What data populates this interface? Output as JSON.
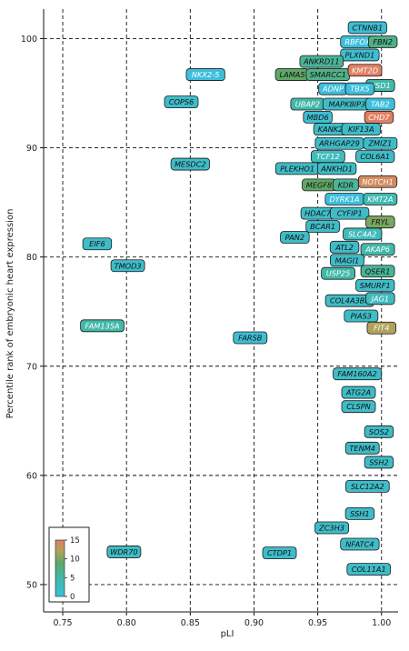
{
  "chart_data": {
    "type": "scatter",
    "title": "",
    "xlabel": "pLI",
    "ylabel": "Percentile rank of embryonic heart expression",
    "xlim": [
      0.735,
      1.013
    ],
    "ylim": [
      47.5,
      102.7
    ],
    "xticks": [
      0.75,
      0.8,
      0.85,
      0.9,
      0.95,
      1.0
    ],
    "xtick_labels": [
      "0.75",
      "0.80",
      "0.85",
      "0.90",
      "0.95",
      "1.00"
    ],
    "yticks": [
      50,
      60,
      70,
      80,
      90,
      100
    ],
    "ytick_labels": [
      "50",
      "60",
      "70",
      "80",
      "90",
      "100"
    ],
    "grid": "dashed",
    "colorbar": {
      "position": "bottom-left",
      "min": 0,
      "max": 15,
      "ticks": [
        "0",
        "5",
        "10",
        "15"
      ],
      "colors": [
        "#3dbfdc",
        "#42b8a8",
        "#5ea865",
        "#b0a25a",
        "#e27f63"
      ]
    },
    "points": [
      {
        "label": "CTNNB1",
        "x": 0.989,
        "y": 101.0,
        "c": 1
      },
      {
        "label": "RBFOX2",
        "x": 0.983,
        "y": 99.7,
        "c": 0
      },
      {
        "label": "FBN2",
        "x": 1.001,
        "y": 99.7,
        "c": 7
      },
      {
        "label": "PLXND1",
        "x": 0.983,
        "y": 98.5,
        "c": 1
      },
      {
        "label": "ANKRD11",
        "x": 0.953,
        "y": 97.9,
        "c": 6
      },
      {
        "label": "NKX2-5",
        "x": 0.862,
        "y": 96.7,
        "c": 0
      },
      {
        "label": "LAMA5",
        "x": 0.93,
        "y": 96.7,
        "c": 9
      },
      {
        "label": "SMARCC1",
        "x": 0.958,
        "y": 96.7,
        "c": 7
      },
      {
        "label": "KMT2D",
        "x": 0.987,
        "y": 97.1,
        "c": 15
      },
      {
        "label": "NSD1",
        "x": 0.999,
        "y": 95.7,
        "c": 5
      },
      {
        "label": "ADNP",
        "x": 0.962,
        "y": 95.4,
        "c": 0
      },
      {
        "label": "TBX5",
        "x": 0.983,
        "y": 95.4,
        "c": 0
      },
      {
        "label": "COPS6",
        "x": 0.843,
        "y": 94.2,
        "c": 2
      },
      {
        "label": "UBAP2",
        "x": 0.942,
        "y": 94.0,
        "c": 5
      },
      {
        "label": "MAPK8IP3",
        "x": 0.973,
        "y": 94.0,
        "c": 2
      },
      {
        "label": "TAB2",
        "x": 0.999,
        "y": 94.0,
        "c": 0
      },
      {
        "label": "MBD6",
        "x": 0.95,
        "y": 92.8,
        "c": 1
      },
      {
        "label": "CHD7",
        "x": 0.998,
        "y": 92.8,
        "c": 15
      },
      {
        "label": "KANK2",
        "x": 0.96,
        "y": 91.7,
        "c": 2
      },
      {
        "label": "KIF13A",
        "x": 0.984,
        "y": 91.7,
        "c": 2
      },
      {
        "label": "ARHGAP29",
        "x": 0.967,
        "y": 90.4,
        "c": 2
      },
      {
        "label": "ZMIZ1",
        "x": 0.999,
        "y": 90.4,
        "c": 2
      },
      {
        "label": "MESDC2",
        "x": 0.85,
        "y": 88.5,
        "c": 2
      },
      {
        "label": "TCF12",
        "x": 0.958,
        "y": 89.2,
        "c": 3
      },
      {
        "label": "COL6A1",
        "x": 0.995,
        "y": 89.2,
        "c": 2
      },
      {
        "label": "PLEKHO1",
        "x": 0.934,
        "y": 88.1,
        "c": 2
      },
      {
        "label": "ANKHD1",
        "x": 0.965,
        "y": 88.1,
        "c": 2
      },
      {
        "label": "NOTCH1",
        "x": 0.997,
        "y": 86.9,
        "c": 14
      },
      {
        "label": "MEGF8",
        "x": 0.951,
        "y": 86.6,
        "c": 9
      },
      {
        "label": "KDR",
        "x": 0.972,
        "y": 86.6,
        "c": 6
      },
      {
        "label": "DYRK1A",
        "x": 0.971,
        "y": 85.3,
        "c": 0
      },
      {
        "label": "KMT2A",
        "x": 0.999,
        "y": 85.3,
        "c": 4
      },
      {
        "label": "HDAC7",
        "x": 0.95,
        "y": 84.0,
        "c": 2
      },
      {
        "label": "CYFIP1",
        "x": 0.975,
        "y": 84.0,
        "c": 2
      },
      {
        "label": "FRYL",
        "x": 0.999,
        "y": 83.2,
        "c": 10
      },
      {
        "label": "BCAR1",
        "x": 0.954,
        "y": 82.8,
        "c": 2
      },
      {
        "label": "SLC4A2",
        "x": 0.985,
        "y": 82.1,
        "c": 3
      },
      {
        "label": "PAN2",
        "x": 0.932,
        "y": 81.8,
        "c": 2
      },
      {
        "label": "EIF6",
        "x": 0.777,
        "y": 81.2,
        "c": 2
      },
      {
        "label": "ATL2",
        "x": 0.971,
        "y": 80.9,
        "c": 2
      },
      {
        "label": "AKAP6",
        "x": 0.997,
        "y": 80.7,
        "c": 5
      },
      {
        "label": "MAGI1",
        "x": 0.973,
        "y": 79.7,
        "c": 2
      },
      {
        "label": "TMOD3",
        "x": 0.801,
        "y": 79.2,
        "c": 2
      },
      {
        "label": "USP25",
        "x": 0.966,
        "y": 78.5,
        "c": 5
      },
      {
        "label": "QSER1",
        "x": 0.997,
        "y": 78.7,
        "c": 6
      },
      {
        "label": "SMURF1",
        "x": 0.995,
        "y": 77.4,
        "c": 2
      },
      {
        "label": "COL4A3BP",
        "x": 0.975,
        "y": 76.0,
        "c": 2
      },
      {
        "label": "JAG1",
        "x": 0.999,
        "y": 76.2,
        "c": 3
      },
      {
        "label": "PIAS3",
        "x": 0.984,
        "y": 74.6,
        "c": 2
      },
      {
        "label": "FAM135A",
        "x": 0.781,
        "y": 73.7,
        "c": 5
      },
      {
        "label": "FIT4",
        "x": 1.0,
        "y": 73.5,
        "c": 12
      },
      {
        "label": "FARSB",
        "x": 0.897,
        "y": 72.6,
        "c": 1
      },
      {
        "label": "FAM160A2",
        "x": 0.981,
        "y": 69.3,
        "c": 2
      },
      {
        "label": "ATG2A",
        "x": 0.982,
        "y": 67.6,
        "c": 2
      },
      {
        "label": "CLSPN",
        "x": 0.982,
        "y": 66.3,
        "c": 2
      },
      {
        "label": "SOS2",
        "x": 0.998,
        "y": 64.0,
        "c": 2
      },
      {
        "label": "TENM4",
        "x": 0.985,
        "y": 62.5,
        "c": 2
      },
      {
        "label": "SSH2",
        "x": 0.998,
        "y": 61.2,
        "c": 2
      },
      {
        "label": "SLC12A2",
        "x": 0.989,
        "y": 59.0,
        "c": 2
      },
      {
        "label": "SSH1",
        "x": 0.983,
        "y": 56.5,
        "c": 2
      },
      {
        "label": "ZC3H3",
        "x": 0.961,
        "y": 55.2,
        "c": 2
      },
      {
        "label": "NFATC4",
        "x": 0.983,
        "y": 53.7,
        "c": 2
      },
      {
        "label": "WDR70",
        "x": 0.798,
        "y": 53.0,
        "c": 2
      },
      {
        "label": "CTDP1",
        "x": 0.92,
        "y": 52.9,
        "c": 2
      },
      {
        "label": "COL11A1",
        "x": 0.99,
        "y": 51.4,
        "c": 2
      }
    ]
  }
}
